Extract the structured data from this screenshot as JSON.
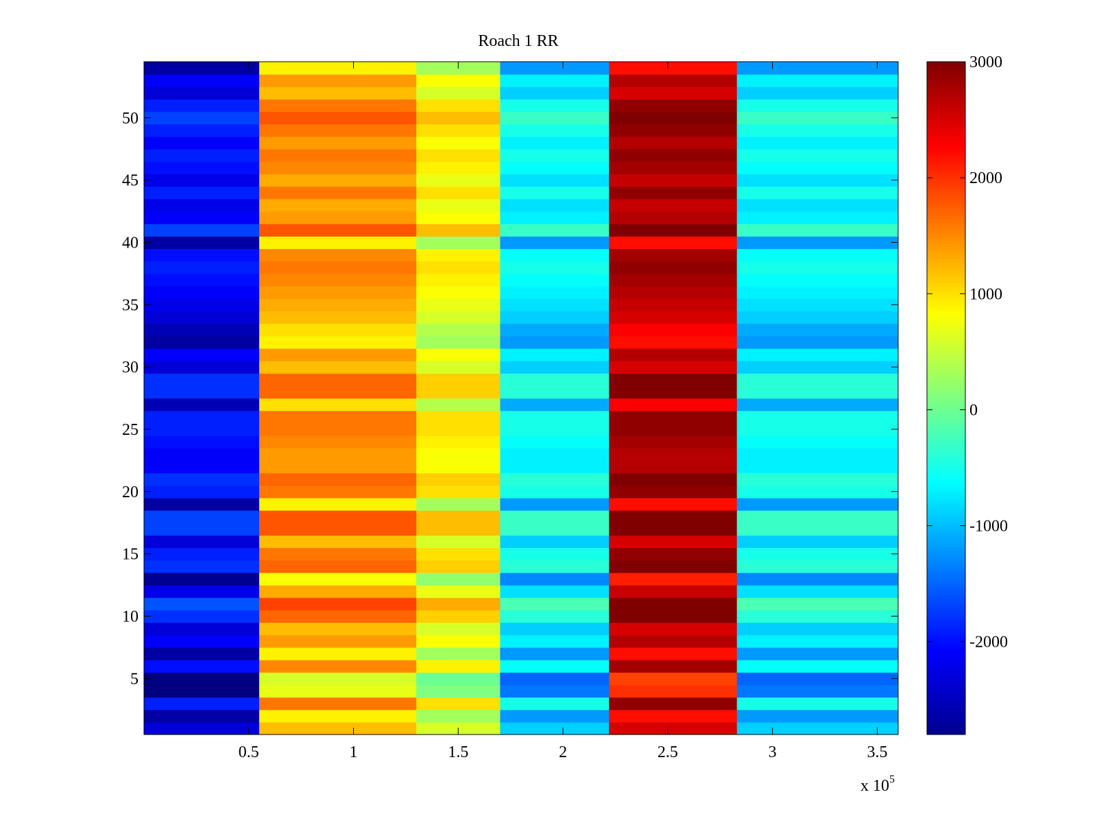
{
  "chart_data": {
    "type": "heatmap",
    "title": "Roach 1 RR",
    "xlabel": "",
    "ylabel": "",
    "x_scale_label": "x 10",
    "x_scale_exponent": "5",
    "x_range": [
      0,
      3.6
    ],
    "y_range": [
      0.5,
      54.5
    ],
    "rows": 54,
    "x_ticks": [
      "0.5",
      "1",
      "1.5",
      "2",
      "2.5",
      "3",
      "3.5"
    ],
    "x_tick_values": [
      0.5,
      1,
      1.5,
      2,
      2.5,
      3,
      3.5
    ],
    "y_ticks": [
      "5",
      "10",
      "15",
      "20",
      "25",
      "30",
      "35",
      "40",
      "45",
      "50"
    ],
    "y_tick_values": [
      5,
      10,
      15,
      20,
      25,
      30,
      35,
      40,
      45,
      50
    ],
    "colorbar": {
      "colormap": "jet",
      "range": [
        -2800,
        3000
      ],
      "ticks": [
        "-2000",
        "-1000",
        "0",
        "1000",
        "2000",
        "3000"
      ],
      "tick_values": [
        -2000,
        -1000,
        0,
        1000,
        2000,
        3000
      ]
    },
    "segment_boundaries": [
      0,
      0.55,
      1.3,
      1.7,
      2.22,
      2.83,
      3.6
    ],
    "segment_baseline": [
      -2300,
      1200,
      600,
      -900,
      2500,
      -900
    ],
    "row_offsets": [
      0,
      -300,
      400,
      -500,
      -600,
      300,
      -300,
      200,
      0,
      500,
      700,
      100,
      -400,
      500,
      400,
      0,
      600,
      600,
      -300,
      400,
      500,
      200,
      200,
      300,
      400,
      400,
      -200,
      500,
      500,
      0,
      200,
      -300,
      -200,
      0,
      100,
      200,
      300,
      400,
      300,
      -300,
      600,
      200,
      100,
      400,
      100,
      300,
      400,
      200,
      400,
      600,
      400,
      0,
      200,
      -300
    ]
  }
}
